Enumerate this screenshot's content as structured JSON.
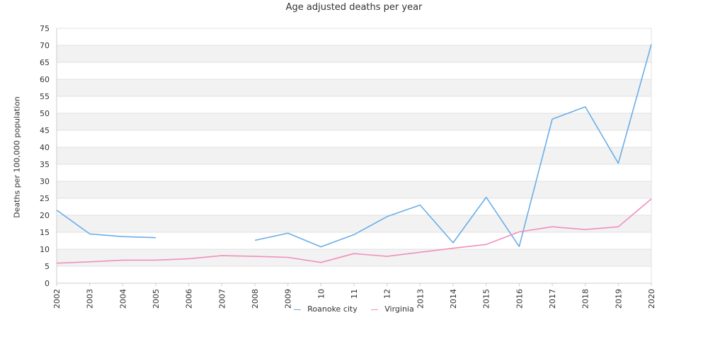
{
  "chart_data": {
    "type": "line",
    "title": "Age adjusted deaths per year",
    "ylabel": "Deaths per 100,000 population",
    "xlabel": "",
    "categories": [
      "2002",
      "2003",
      "2004",
      "2005",
      "2006",
      "2007",
      "2008",
      "2009",
      "10",
      "11",
      "12",
      "2013",
      "2014",
      "2015",
      "2016",
      "2017",
      "2018",
      "2019",
      "2020"
    ],
    "ylim": [
      0,
      75
    ],
    "yticks": [
      0,
      5,
      10,
      15,
      20,
      25,
      30,
      35,
      40,
      45,
      50,
      55,
      60,
      65,
      70,
      75
    ],
    "grid": "alternating horizontal bands",
    "legend_position": "bottom-center",
    "series": [
      {
        "name": "Roanoke city",
        "color": "#6aaee8",
        "values": [
          21.5,
          14.5,
          13.7,
          13.4,
          null,
          null,
          12.6,
          14.7,
          10.7,
          14.3,
          19.6,
          23.0,
          11.9,
          25.3,
          10.8,
          48.3,
          51.9,
          35.3,
          70.3
        ]
      },
      {
        "name": "Virginia",
        "color": "#f08fbd",
        "values": [
          5.9,
          6.3,
          6.8,
          6.8,
          7.2,
          8.1,
          7.9,
          7.6,
          6.1,
          8.7,
          7.9,
          9.1,
          10.3,
          11.4,
          15.1,
          16.6,
          15.8,
          16.6,
          24.8
        ]
      }
    ]
  }
}
